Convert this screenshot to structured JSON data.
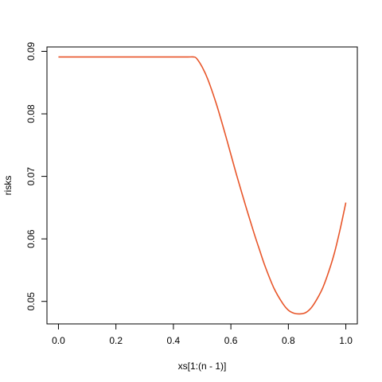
{
  "chart_data": {
    "type": "line",
    "title": "",
    "xlabel": "xs[1:(n - 1)]",
    "ylabel": "risks",
    "xlim": [
      -0.04,
      1.04
    ],
    "ylim": [
      0.0464,
      0.0907
    ],
    "x_ticks": [
      0.0,
      0.2,
      0.4,
      0.6,
      0.8,
      1.0
    ],
    "x_tick_labels": [
      "0.0",
      "0.2",
      "0.4",
      "0.6",
      "0.8",
      "1.0"
    ],
    "y_ticks": [
      0.05,
      0.06,
      0.07,
      0.08,
      0.09
    ],
    "y_tick_labels": [
      "0.05",
      "0.06",
      "0.07",
      "0.08",
      "0.09"
    ],
    "grid": false,
    "legend": "none",
    "series": [
      {
        "color": "#e8562a",
        "x": [
          0.0,
          0.1,
          0.2,
          0.3,
          0.4,
          0.45,
          0.47,
          0.48,
          0.5,
          0.52,
          0.55,
          0.58,
          0.6,
          0.62,
          0.65,
          0.68,
          0.7,
          0.72,
          0.75,
          0.78,
          0.8,
          0.82,
          0.84,
          0.86,
          0.88,
          0.9,
          0.92,
          0.94,
          0.96,
          0.98,
          1.0
        ],
        "y": [
          0.0891,
          0.0891,
          0.0891,
          0.0891,
          0.0891,
          0.0891,
          0.0891,
          0.0889,
          0.0875,
          0.0855,
          0.0815,
          0.0768,
          0.0735,
          0.0702,
          0.0655,
          0.061,
          0.0582,
          0.0555,
          0.0521,
          0.0497,
          0.0486,
          0.0481,
          0.048,
          0.0482,
          0.049,
          0.0504,
          0.0522,
          0.0547,
          0.0577,
          0.0615,
          0.0658
        ]
      }
    ]
  }
}
